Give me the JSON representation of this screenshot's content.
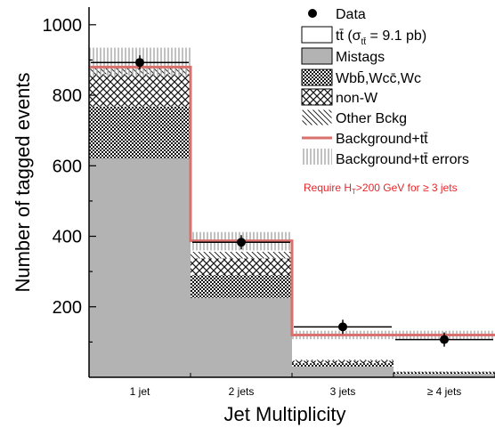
{
  "chart_data": {
    "type": "bar",
    "stacked": true,
    "xlabel": "Jet Multiplicity",
    "ylabel": "Number of tagged events",
    "categories": [
      "1 jet",
      "2 jets",
      "3 jets",
      "≥ 4 jets"
    ],
    "ylim": [
      0,
      1050
    ],
    "yticks": [
      200,
      400,
      600,
      800,
      1000
    ],
    "yticks_minor_step": 100,
    "series": [
      {
        "name": "Mistags",
        "values": [
          620,
          225,
          30,
          10
        ],
        "fill": "gray"
      },
      {
        "name": "Wbb̄,Wcc̄,Wc",
        "values": [
          148,
          65,
          10,
          4
        ],
        "fill": "dense-dots"
      },
      {
        "name": "non-W",
        "values": [
          92,
          47,
          7,
          2
        ],
        "fill": "cross-hatch"
      },
      {
        "name": "Other Bckg",
        "values": [
          20,
          19,
          3,
          1
        ],
        "fill": "diagonal"
      },
      {
        "name": "tt̄ (σ_tt̄ = 9.1 pb)",
        "values": [
          0,
          25,
          70,
          103
        ],
        "fill": "white"
      }
    ],
    "background_total": {
      "name": "Background+tt̄",
      "values": [
        880,
        387,
        120,
        120
      ],
      "color": "#d9706e"
    },
    "background_error": {
      "name": "Background+tt̄ errors",
      "low": [
        855,
        360,
        108,
        108
      ],
      "high": [
        935,
        412,
        132,
        132
      ]
    },
    "data": {
      "name": "Data",
      "values": [
        893,
        383,
        143,
        107
      ],
      "xerr_full_bin": true
    },
    "annotation": "Require H_T>200 GeV for ≥ 3 jets",
    "annotation_color": "#e8252a",
    "legend_position": "top-right"
  },
  "legend_labels": {
    "data": "Data",
    "ttbar_main": "tt̄ (σ",
    "ttbar_sub": "tt̄",
    "ttbar_rest": " = 9.1 pb)",
    "mistags": "Mistags",
    "wbb": "Wbb̄,Wcc̄,Wc",
    "nonw": "non-W",
    "other": "Other Bckg",
    "bkg": "Background+tt̄",
    "bkg_err": "Background+tt̄ errors"
  },
  "annotation_parts": {
    "pre": "Require H",
    "sub": "T",
    "post": ">200 GeV for ≥ 3 jets"
  }
}
